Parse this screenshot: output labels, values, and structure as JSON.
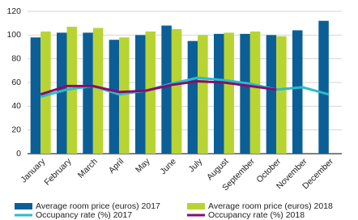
{
  "chart_data": {
    "type": "bar",
    "categories": [
      "January",
      "February",
      "March",
      "April",
      "May",
      "June",
      "July",
      "August",
      "September",
      "October",
      "November",
      "December"
    ],
    "series": [
      {
        "name": "Average room price (euros) 2017",
        "type": "bar",
        "color": "#0b5f96",
        "values": [
          98,
          102,
          102,
          96,
          100,
          108,
          95,
          101,
          101,
          100,
          104,
          112
        ]
      },
      {
        "name": "Average room price (euros) 2018",
        "type": "bar",
        "color": "#b8d432",
        "values": [
          103,
          107,
          106,
          98,
          103,
          105,
          100,
          102,
          103,
          99,
          null,
          null
        ]
      },
      {
        "name": "Occupancy rate (%) 2017",
        "type": "line",
        "color": "#2bbcc9",
        "values": [
          48,
          54,
          57,
          50,
          53,
          59,
          64,
          62,
          59,
          54,
          56,
          50
        ]
      },
      {
        "name": "Occupancy rate (%) 2018",
        "type": "line",
        "color": "#8a0c6c",
        "values": [
          50,
          57,
          57,
          52,
          53,
          58,
          61,
          60,
          57,
          54,
          null,
          null
        ]
      }
    ],
    "ylim": [
      0,
      120
    ],
    "yticks": [
      0,
      20,
      40,
      60,
      80,
      100,
      120
    ],
    "grid": true
  }
}
